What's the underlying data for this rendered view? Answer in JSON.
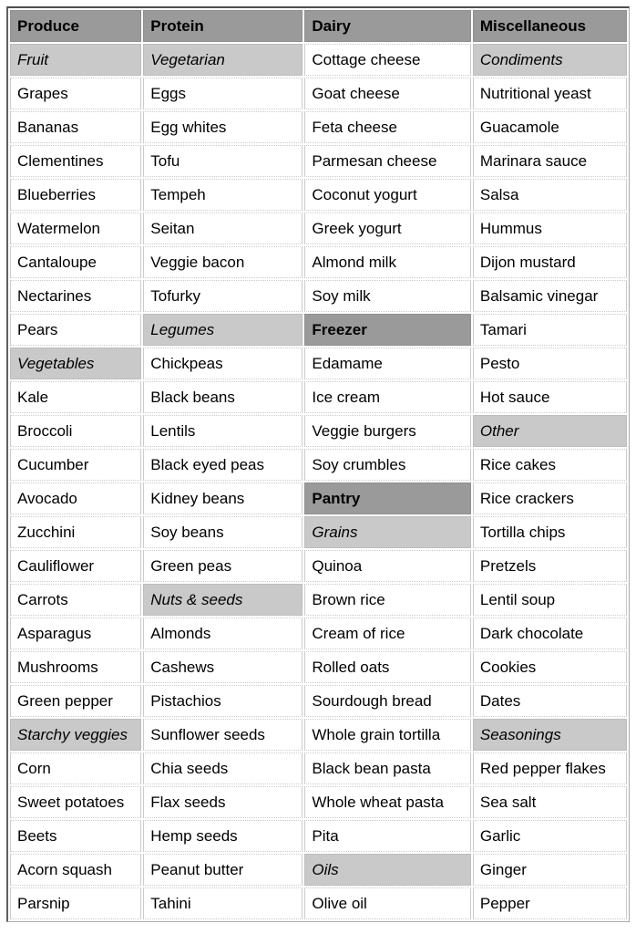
{
  "colors": {
    "category_header_bg": "#9a9a9a",
    "subcategory_bg": "#c9c9c9",
    "item_bg": "#ffffff",
    "text": "#000000",
    "outer_border": "#4e4e4e",
    "cell_border": "#cbcbcb"
  },
  "table": {
    "columns": [
      {
        "label": "Produce"
      },
      {
        "label": "Protein"
      },
      {
        "label": "Dairy"
      },
      {
        "label": "Miscellaneous"
      }
    ],
    "rows": [
      [
        {
          "text": "Fruit",
          "type": "sub"
        },
        {
          "text": "Vegetarian",
          "type": "sub"
        },
        {
          "text": "Cottage cheese"
        },
        {
          "text": "Condiments",
          "type": "sub"
        }
      ],
      [
        {
          "text": "Grapes"
        },
        {
          "text": "Eggs"
        },
        {
          "text": "Goat cheese"
        },
        {
          "text": "Nutritional yeast"
        }
      ],
      [
        {
          "text": "Bananas"
        },
        {
          "text": "Egg whites"
        },
        {
          "text": "Feta cheese"
        },
        {
          "text": "Guacamole"
        }
      ],
      [
        {
          "text": "Clementines"
        },
        {
          "text": "Tofu"
        },
        {
          "text": "Parmesan cheese"
        },
        {
          "text": "Marinara sauce"
        }
      ],
      [
        {
          "text": "Blueberries"
        },
        {
          "text": "Tempeh"
        },
        {
          "text": "Coconut yogurt"
        },
        {
          "text": "Salsa"
        }
      ],
      [
        {
          "text": "Watermelon"
        },
        {
          "text": "Seitan"
        },
        {
          "text": "Greek yogurt"
        },
        {
          "text": "Hummus"
        }
      ],
      [
        {
          "text": "Cantaloupe"
        },
        {
          "text": "Veggie bacon"
        },
        {
          "text": "Almond milk"
        },
        {
          "text": "Dijon mustard"
        }
      ],
      [
        {
          "text": "Nectarines"
        },
        {
          "text": "Tofurky"
        },
        {
          "text": "Soy milk"
        },
        {
          "text": "Balsamic vinegar"
        }
      ],
      [
        {
          "text": "Pears"
        },
        {
          "text": "Legumes",
          "type": "sub"
        },
        {
          "text": "Freezer",
          "type": "cat"
        },
        {
          "text": "Tamari"
        }
      ],
      [
        {
          "text": "Vegetables",
          "type": "sub"
        },
        {
          "text": "Chickpeas"
        },
        {
          "text": "Edamame"
        },
        {
          "text": "Pesto"
        }
      ],
      [
        {
          "text": "Kale"
        },
        {
          "text": "Black beans"
        },
        {
          "text": "Ice cream"
        },
        {
          "text": "Hot sauce"
        }
      ],
      [
        {
          "text": "Broccoli"
        },
        {
          "text": "Lentils"
        },
        {
          "text": "Veggie burgers"
        },
        {
          "text": "Other",
          "type": "sub"
        }
      ],
      [
        {
          "text": "Cucumber"
        },
        {
          "text": "Black eyed peas"
        },
        {
          "text": "Soy crumbles"
        },
        {
          "text": "Rice cakes"
        }
      ],
      [
        {
          "text": "Avocado"
        },
        {
          "text": "Kidney beans"
        },
        {
          "text": "Pantry",
          "type": "cat"
        },
        {
          "text": "Rice crackers"
        }
      ],
      [
        {
          "text": "Zucchini"
        },
        {
          "text": "Soy beans"
        },
        {
          "text": "Grains",
          "type": "sub"
        },
        {
          "text": "Tortilla chips"
        }
      ],
      [
        {
          "text": "Cauliflower"
        },
        {
          "text": "Green peas"
        },
        {
          "text": "Quinoa"
        },
        {
          "text": "Pretzels"
        }
      ],
      [
        {
          "text": "Carrots"
        },
        {
          "text": "Nuts & seeds",
          "type": "sub"
        },
        {
          "text": "Brown rice"
        },
        {
          "text": "Lentil soup"
        }
      ],
      [
        {
          "text": "Asparagus"
        },
        {
          "text": "Almonds"
        },
        {
          "text": "Cream of rice"
        },
        {
          "text": "Dark chocolate"
        }
      ],
      [
        {
          "text": "Mushrooms"
        },
        {
          "text": "Cashews"
        },
        {
          "text": "Rolled oats"
        },
        {
          "text": "Cookies"
        }
      ],
      [
        {
          "text": "Green pepper"
        },
        {
          "text": "Pistachios"
        },
        {
          "text": "Sourdough bread"
        },
        {
          "text": "Dates"
        }
      ],
      [
        {
          "text": "Starchy veggies",
          "type": "sub"
        },
        {
          "text": "Sunflower seeds"
        },
        {
          "text": "Whole grain tortilla"
        },
        {
          "text": "Seasonings",
          "type": "sub"
        }
      ],
      [
        {
          "text": "Corn"
        },
        {
          "text": "Chia seeds"
        },
        {
          "text": "Black bean pasta"
        },
        {
          "text": "Red pepper flakes"
        }
      ],
      [
        {
          "text": "Sweet potatoes"
        },
        {
          "text": "Flax seeds"
        },
        {
          "text": "Whole wheat pasta"
        },
        {
          "text": "Sea salt"
        }
      ],
      [
        {
          "text": "Beets"
        },
        {
          "text": "Hemp seeds"
        },
        {
          "text": "Pita"
        },
        {
          "text": "Garlic"
        }
      ],
      [
        {
          "text": "Acorn squash"
        },
        {
          "text": "Peanut butter"
        },
        {
          "text": "Oils",
          "type": "sub"
        },
        {
          "text": "Ginger"
        }
      ],
      [
        {
          "text": "Parsnip"
        },
        {
          "text": "Tahini"
        },
        {
          "text": "Olive oil"
        },
        {
          "text": "Pepper"
        }
      ]
    ]
  }
}
